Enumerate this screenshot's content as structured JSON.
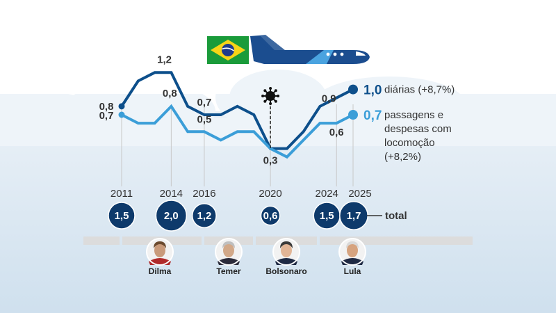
{
  "chart_data": {
    "type": "line",
    "x": [
      2011,
      2012,
      2013,
      2014,
      2015,
      2016,
      2017,
      2018,
      2019,
      2020,
      2021,
      2022,
      2023,
      2024,
      2025
    ],
    "x_tick_labels": [
      "2011",
      "2014",
      "2016",
      "2020",
      "2024",
      "2025"
    ],
    "series": [
      {
        "name": "diárias (+8,7%)",
        "color": "#0d4f8b",
        "values": [
          0.8,
          1.1,
          1.2,
          1.2,
          0.8,
          0.7,
          0.7,
          0.8,
          0.7,
          0.3,
          0.3,
          0.5,
          0.8,
          0.9,
          1.0
        ],
        "end_label": "1,0"
      },
      {
        "name": "passagens e despesas com locomoção (+8,2%)",
        "name_lines": [
          "passagens e",
          "despesas com",
          "locomoção",
          "(+8,2%)"
        ],
        "color": "#3b9ed8",
        "values": [
          0.7,
          0.6,
          0.6,
          0.8,
          0.5,
          0.5,
          0.4,
          0.5,
          0.5,
          0.3,
          0.2,
          0.4,
          0.6,
          0.6,
          0.7
        ],
        "end_label": "0,7"
      }
    ],
    "data_labels": [
      {
        "x": 2011,
        "text": "0,8",
        "series": 0
      },
      {
        "x": 2011,
        "text": "0,7",
        "series": 1
      },
      {
        "x": 2013,
        "text": "1,2",
        "series": 0
      },
      {
        "x": 2014,
        "text": "0,8",
        "series": 1
      },
      {
        "x": 2016,
        "text": "0,7",
        "series": 0
      },
      {
        "x": 2016,
        "text": "0,5",
        "series": 1
      },
      {
        "x": 2020,
        "text": "0,3",
        "series": 0
      },
      {
        "x": 2024,
        "text": "0,9",
        "series": 0
      },
      {
        "x": 2024,
        "text": "0,6",
        "series": 1
      }
    ],
    "covid_marker_year": 2020,
    "ylim": [
      0,
      1.4
    ],
    "totals": [
      {
        "x": 2011,
        "text": "1,5"
      },
      {
        "x": 2014,
        "text": "2,0"
      },
      {
        "x": 2016,
        "text": "1,2"
      },
      {
        "x": 2020,
        "text": "0,6"
      },
      {
        "x": 2024,
        "text": "1,5"
      },
      {
        "x": 2025,
        "text": "1,7"
      }
    ],
    "totals_label": "total",
    "presidents": [
      {
        "name": "Dilma",
        "from": 2011,
        "to": 2016,
        "face": "#c99a7a",
        "hair": "#6b4a2e",
        "suit": "#b02a2a"
      },
      {
        "name": "Temer",
        "from": 2016,
        "to": 2019,
        "face": "#d2a888",
        "hair": "#bfbfbf",
        "suit": "#2b2b3a"
      },
      {
        "name": "Bolsonaro",
        "from": 2019,
        "to": 2023,
        "face": "#e2b596",
        "hair": "#3a3a3a",
        "suit": "#1f2a44"
      },
      {
        "name": "Lula",
        "from": 2023,
        "to": 2026,
        "face": "#d6a37f",
        "hair": "#d9d9d9",
        "suit": "#1f2a44"
      }
    ]
  },
  "colors": {
    "dark_series": "#0d4f8b",
    "light_series": "#3b9ed8",
    "total_bubble": "#0e3a6b",
    "plane": "#1b4d8f",
    "era_bar": "#dcdcdc",
    "flag_green": "#1a9b3a",
    "flag_yellow": "#f7d417",
    "flag_blue": "#1f3c8c"
  },
  "icons": [
    "airplane-icon",
    "brazil-flag-icon",
    "virus-icon"
  ]
}
